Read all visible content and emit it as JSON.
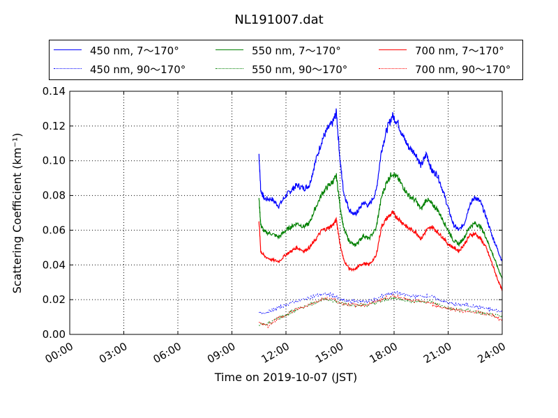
{
  "chart_data": {
    "type": "line",
    "title": "NL191007.dat",
    "xlabel": "Time on 2019-10-07 (JST)",
    "ylabel": "Scattering Coefficient (km⁻¹)",
    "xlim": [
      0,
      24
    ],
    "ylim": [
      0,
      0.14
    ],
    "x_ticks": [
      "00:00",
      "03:00",
      "06:00",
      "09:00",
      "12:00",
      "15:00",
      "18:00",
      "21:00",
      "24:00"
    ],
    "y_ticks": [
      "0.00",
      "0.02",
      "0.04",
      "0.06",
      "0.08",
      "0.10",
      "0.12",
      "0.14"
    ],
    "grid": true,
    "legend_position": "top, above plot",
    "x_unit": "hours",
    "series": [
      {
        "name": "450 nm, 7～170°",
        "color": "#0000ff",
        "style": "solid",
        "x": [
          10.5,
          10.6,
          10.8,
          11.2,
          11.6,
          12.0,
          12.3,
          12.6,
          13.0,
          13.3,
          13.6,
          14.0,
          14.3,
          14.6,
          14.8,
          15.0,
          15.2,
          15.5,
          15.8,
          16.0,
          16.3,
          16.6,
          17.0,
          17.3,
          17.6,
          17.9,
          18.2,
          18.5,
          18.8,
          19.2,
          19.5,
          19.8,
          20.1,
          20.4,
          20.7,
          21.0,
          21.3,
          21.6,
          21.9,
          22.2,
          22.5,
          22.8,
          23.1,
          23.4,
          23.7,
          24.0
        ],
        "y": [
          0.104,
          0.083,
          0.078,
          0.078,
          0.074,
          0.08,
          0.083,
          0.086,
          0.084,
          0.086,
          0.098,
          0.112,
          0.118,
          0.122,
          0.128,
          0.1,
          0.082,
          0.072,
          0.069,
          0.071,
          0.076,
          0.074,
          0.082,
          0.106,
          0.118,
          0.126,
          0.122,
          0.114,
          0.108,
          0.104,
          0.097,
          0.104,
          0.094,
          0.092,
          0.083,
          0.073,
          0.063,
          0.06,
          0.064,
          0.075,
          0.079,
          0.076,
          0.068,
          0.058,
          0.05,
          0.042
        ]
      },
      {
        "name": "550 nm, 7～170°",
        "color": "#008000",
        "style": "solid",
        "x": [
          10.5,
          10.6,
          10.8,
          11.2,
          11.6,
          12.0,
          12.3,
          12.6,
          13.0,
          13.3,
          13.6,
          14.0,
          14.3,
          14.6,
          14.8,
          15.0,
          15.2,
          15.5,
          15.8,
          16.0,
          16.3,
          16.6,
          17.0,
          17.3,
          17.6,
          17.9,
          18.2,
          18.5,
          18.8,
          19.2,
          19.5,
          19.8,
          20.1,
          20.4,
          20.7,
          21.0,
          21.3,
          21.6,
          21.9,
          22.2,
          22.5,
          22.8,
          23.1,
          23.4,
          23.7,
          24.0
        ],
        "y": [
          0.079,
          0.063,
          0.059,
          0.058,
          0.056,
          0.06,
          0.062,
          0.064,
          0.062,
          0.064,
          0.072,
          0.081,
          0.085,
          0.088,
          0.091,
          0.074,
          0.061,
          0.054,
          0.051,
          0.053,
          0.057,
          0.055,
          0.061,
          0.079,
          0.088,
          0.093,
          0.09,
          0.085,
          0.08,
          0.077,
          0.072,
          0.078,
          0.075,
          0.072,
          0.066,
          0.06,
          0.054,
          0.052,
          0.056,
          0.062,
          0.064,
          0.062,
          0.056,
          0.048,
          0.04,
          0.032
        ]
      },
      {
        "name": "700 nm, 7～170°",
        "color": "#ff0000",
        "style": "solid",
        "x": [
          10.5,
          10.6,
          10.8,
          11.2,
          11.6,
          12.0,
          12.3,
          12.6,
          13.0,
          13.3,
          13.6,
          14.0,
          14.3,
          14.6,
          14.8,
          15.0,
          15.2,
          15.5,
          15.8,
          16.0,
          16.3,
          16.6,
          17.0,
          17.3,
          17.6,
          17.9,
          18.2,
          18.5,
          18.8,
          19.2,
          19.5,
          19.8,
          20.1,
          20.4,
          20.7,
          21.0,
          21.3,
          21.6,
          21.9,
          22.2,
          22.5,
          22.8,
          23.1,
          23.4,
          23.7,
          24.0
        ],
        "y": [
          0.066,
          0.048,
          0.045,
          0.043,
          0.042,
          0.046,
          0.048,
          0.05,
          0.048,
          0.05,
          0.054,
          0.06,
          0.061,
          0.063,
          0.066,
          0.052,
          0.043,
          0.038,
          0.037,
          0.039,
          0.041,
          0.04,
          0.045,
          0.062,
          0.067,
          0.07,
          0.067,
          0.064,
          0.061,
          0.059,
          0.055,
          0.06,
          0.062,
          0.059,
          0.056,
          0.052,
          0.05,
          0.048,
          0.052,
          0.057,
          0.058,
          0.055,
          0.05,
          0.042,
          0.033,
          0.025
        ]
      },
      {
        "name": "450 nm, 90～170°",
        "color": "#0000ff",
        "style": "dotted",
        "x": [
          10.5,
          11.0,
          11.5,
          12.0,
          12.5,
          13.0,
          13.5,
          14.0,
          14.5,
          15.0,
          15.5,
          16.0,
          16.5,
          17.0,
          17.5,
          18.0,
          18.5,
          19.0,
          19.5,
          20.0,
          20.5,
          21.0,
          21.5,
          22.0,
          22.5,
          23.0,
          23.5,
          24.0
        ],
        "y": [
          0.012,
          0.013,
          0.015,
          0.017,
          0.019,
          0.02,
          0.022,
          0.023,
          0.023,
          0.02,
          0.019,
          0.019,
          0.019,
          0.02,
          0.023,
          0.024,
          0.023,
          0.022,
          0.022,
          0.022,
          0.02,
          0.018,
          0.017,
          0.017,
          0.016,
          0.015,
          0.014,
          0.013
        ]
      },
      {
        "name": "550 nm, 90～170°",
        "color": "#008000",
        "style": "dotted",
        "x": [
          10.5,
          11.0,
          11.5,
          12.0,
          12.5,
          13.0,
          13.5,
          14.0,
          14.5,
          15.0,
          15.5,
          16.0,
          16.5,
          17.0,
          17.5,
          18.0,
          18.5,
          19.0,
          19.5,
          20.0,
          20.5,
          21.0,
          21.5,
          22.0,
          22.5,
          23.0,
          23.5,
          24.0
        ],
        "y": [
          0.006,
          0.006,
          0.009,
          0.011,
          0.014,
          0.016,
          0.018,
          0.02,
          0.02,
          0.018,
          0.017,
          0.017,
          0.017,
          0.018,
          0.02,
          0.021,
          0.02,
          0.019,
          0.019,
          0.019,
          0.017,
          0.015,
          0.014,
          0.014,
          0.013,
          0.012,
          0.011,
          0.01
        ]
      },
      {
        "name": "700 nm, 90～170°",
        "color": "#ff0000",
        "style": "dotted",
        "x": [
          10.5,
          11.0,
          11.5,
          12.0,
          12.5,
          13.0,
          13.5,
          14.0,
          14.5,
          15.0,
          15.5,
          16.0,
          16.5,
          17.0,
          17.5,
          18.0,
          18.5,
          19.0,
          19.5,
          20.0,
          20.5,
          21.0,
          21.5,
          22.0,
          22.5,
          23.0,
          23.5,
          24.0
        ],
        "y": [
          0.007,
          0.005,
          0.009,
          0.011,
          0.014,
          0.016,
          0.018,
          0.02,
          0.021,
          0.018,
          0.017,
          0.017,
          0.017,
          0.019,
          0.021,
          0.022,
          0.021,
          0.019,
          0.019,
          0.018,
          0.016,
          0.015,
          0.014,
          0.013,
          0.013,
          0.012,
          0.011,
          0.008
        ]
      }
    ]
  }
}
